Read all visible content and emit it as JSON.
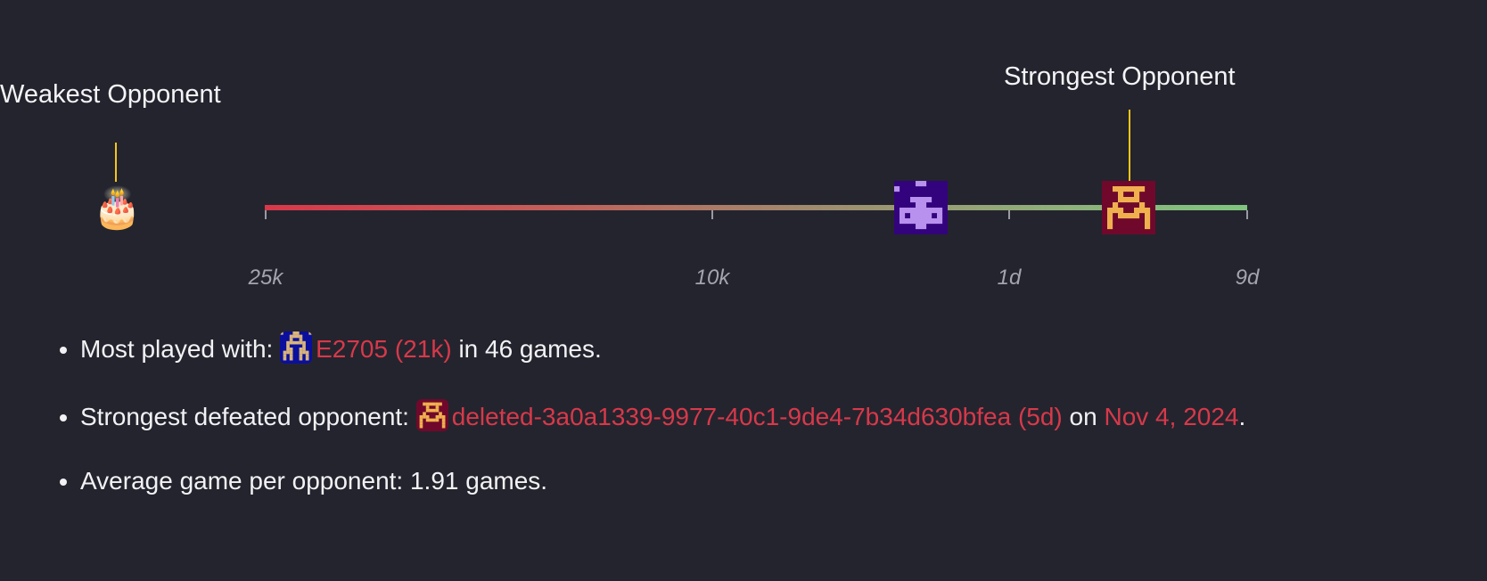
{
  "chart": {
    "weakest_label": "Weakest Opponent",
    "strongest_label": "Strongest Opponent",
    "weakest_icon": "🎂",
    "tick_labels": [
      "25k",
      "10k",
      "1d",
      "9d"
    ],
    "gradient_colors": [
      "#d7384a",
      "#7fc47f"
    ],
    "marker_color": "#f5c518"
  },
  "stats": {
    "most_played": {
      "prefix": "Most played with:",
      "opponent": "E2705 (21k)",
      "suffix": "in 46 games."
    },
    "strongest_defeated": {
      "prefix": "Strongest defeated opponent:",
      "opponent": "deleted-3a0a1339-9977-40c1-9de4-7b34d630bfea (5d)",
      "on": "on",
      "date": "Nov 4, 2024",
      "end": "."
    },
    "average": {
      "text": "Average game per opponent: 1.91 games."
    }
  },
  "colors": {
    "link": "#d7394a",
    "background": "#24242e"
  }
}
